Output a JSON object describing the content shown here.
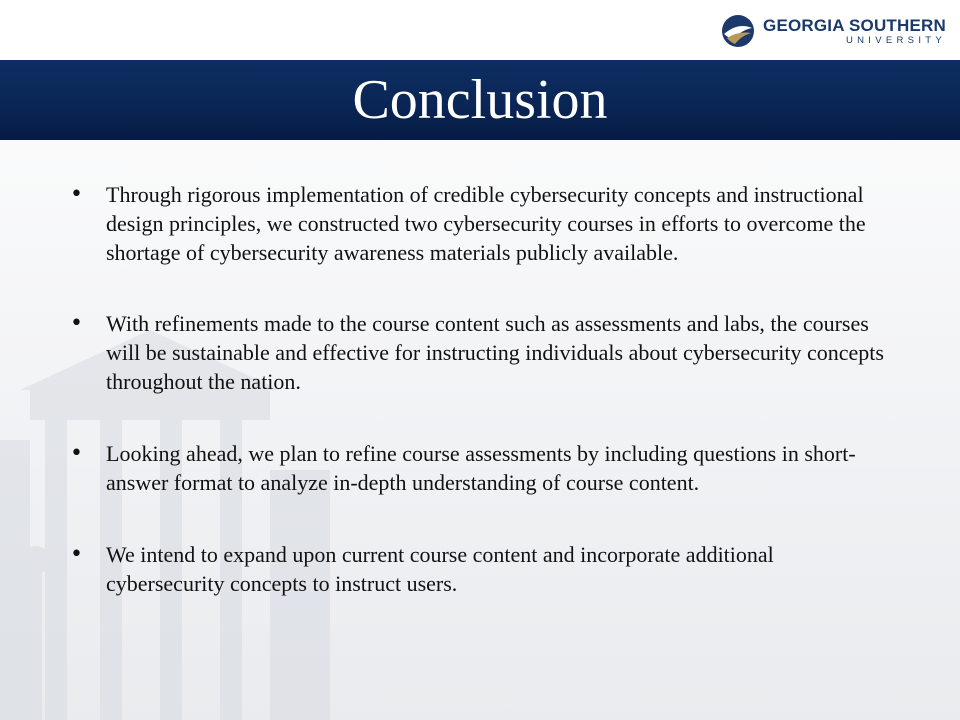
{
  "logo": {
    "name": "GEORGIA SOUTHERN",
    "sub": "UNIVERSITY",
    "colors": {
      "navy": "#1b3a6b",
      "gold": "#b79a5a"
    }
  },
  "slide": {
    "title": "Conclusion",
    "banner_color": "#0a2656",
    "bullets": [
      "Through rigorous implementation of credible cybersecurity concepts and instructional design principles, we constructed two cybersecurity courses in efforts to overcome the shortage of cybersecurity awareness materials publicly available.",
      "With refinements made to the course content such as assessments and labs, the courses will be sustainable and effective for instructing individuals about cybersecurity concepts throughout the nation.",
      "Looking ahead, we plan to refine course assessments by including questions in short-answer format to analyze in-depth understanding of course content.",
      "We intend to expand upon current course content and incorporate additional cybersecurity concepts to instruct users."
    ]
  }
}
